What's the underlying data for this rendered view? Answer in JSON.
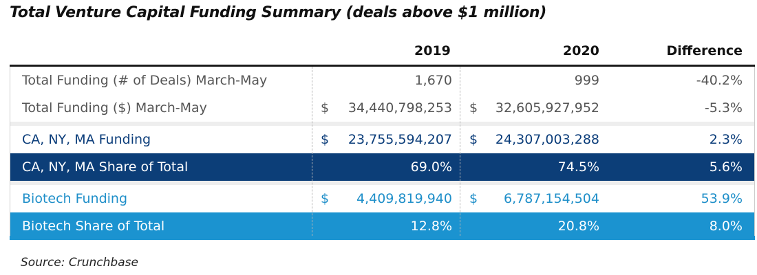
{
  "chart_data": {
    "type": "table",
    "title": "Total Venture Capital Funding Summary (deals above $1 million)",
    "columns": [
      "",
      "2019",
      "2020",
      "Difference"
    ],
    "rows": [
      {
        "label": "Total Funding (# of Deals) March-May",
        "cur1": "",
        "v2019": "1,670",
        "cur2": "",
        "v2020": "999",
        "diff": "-40.2%",
        "fg": "#555555",
        "bg": "#ffffff"
      },
      {
        "label": "Total Funding ($) March-May",
        "cur1": "$",
        "v2019": "34,440,798,253",
        "cur2": "$",
        "v2020": "32,605,927,952",
        "diff": "-5.3%",
        "fg": "#555555",
        "bg": "#ffffff"
      },
      {
        "label": "CA, NY, MA Funding",
        "cur1": "$",
        "v2019": "23,755,594,207",
        "cur2": "$",
        "v2020": "24,307,003,288",
        "diff": "2.3%",
        "fg": "#0b3d7a",
        "bg": "#ffffff"
      },
      {
        "label": "CA, NY, MA Share of Total",
        "cur1": "",
        "v2019": "69.0%",
        "cur2": "",
        "v2020": "74.5%",
        "diff": "5.6%",
        "fg": "#ffffff",
        "bg": "#0c3e78"
      },
      {
        "label": "Biotech Funding",
        "cur1": "$",
        "v2019": "4,409,819,940",
        "cur2": "$",
        "v2020": "6,787,154,504",
        "diff": "53.9%",
        "fg": "#1f8fc9",
        "bg": "#ffffff"
      },
      {
        "label": "Biotech Share of Total",
        "cur1": "",
        "v2019": "12.8%",
        "cur2": "",
        "v2020": "20.8%",
        "diff": "8.0%",
        "fg": "#ffffff",
        "bg": "#1b93d0"
      }
    ],
    "source": "Source: Crunchbase"
  }
}
